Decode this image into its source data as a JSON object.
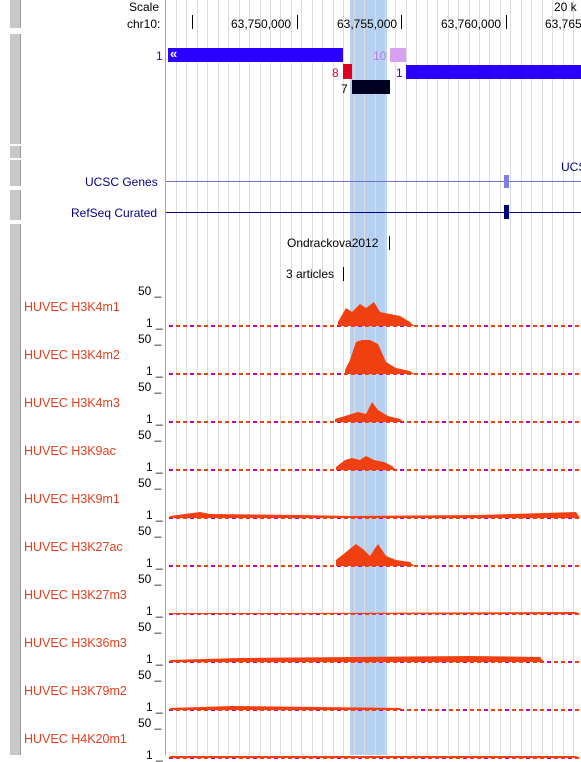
{
  "ruler": {
    "scale_label": "Scale",
    "chrom_label": "chr10:",
    "ticks": [
      "63,750,000",
      "63,755,000",
      "63,760,000",
      "63,765"
    ],
    "scale_right": "20 k"
  },
  "features": {
    "exon1_left_num": "1",
    "exon10_num": "10",
    "exon8_num": "8",
    "exon1_right_num": "1",
    "exon7_num": "7"
  },
  "tracks": {
    "ucsc_genes": "UCSC Genes",
    "ucsc_genes_right": "UCS",
    "refseq": "RefSeq Curated",
    "publication": "Ondrackova2012",
    "articles": "3 articles"
  },
  "signal_tracks": [
    {
      "name": "HUVEC H3K4m1",
      "max": "50",
      "min": "1"
    },
    {
      "name": "HUVEC H3K4m2",
      "max": "50",
      "min": "1"
    },
    {
      "name": "HUVEC H3K4m3",
      "max": "50",
      "min": "1"
    },
    {
      "name": "HUVEC H3K9ac",
      "max": "50",
      "min": "1"
    },
    {
      "name": "HUVEC H3K9m1",
      "max": "50",
      "min": "1"
    },
    {
      "name": "HUVEC H3K27ac",
      "max": "50",
      "min": "1"
    },
    {
      "name": "HUVEC H3K27m3",
      "max": "50",
      "min": "1"
    },
    {
      "name": "HUVEC H3K36m3",
      "max": "50",
      "min": "1"
    },
    {
      "name": "HUVEC H3K79m2",
      "max": "50",
      "min": "1"
    },
    {
      "name": "HUVEC H4K20m1",
      "max": "50",
      "min": "1"
    }
  ],
  "colors": {
    "highlight": "#aecbf0",
    "signal": "#f04010",
    "track_label": "#e2401f",
    "gene_blue": "#2a00ff",
    "navy": "#000080"
  }
}
